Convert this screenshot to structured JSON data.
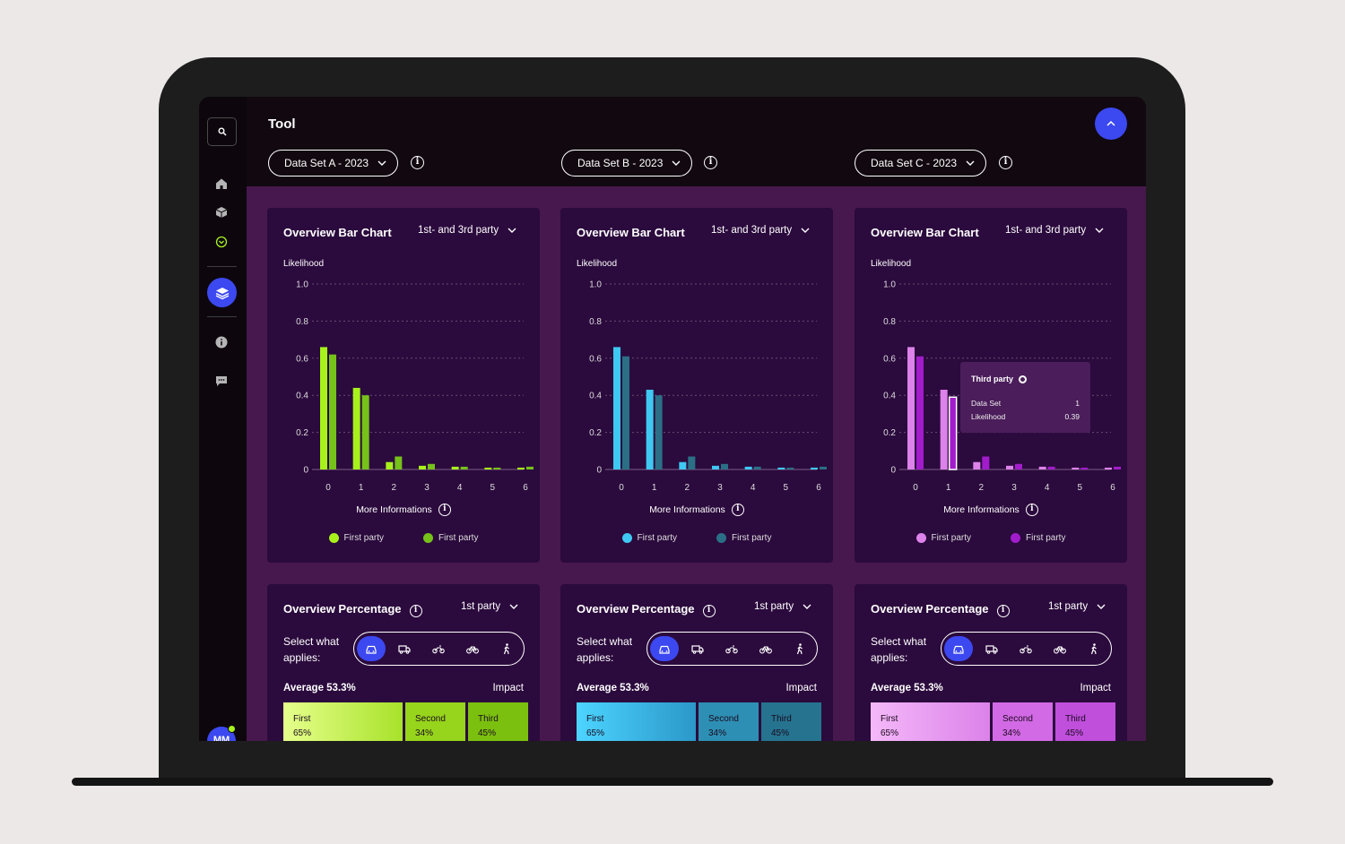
{
  "app": {
    "title": "Tool",
    "avatar_initials": "MM"
  },
  "sidebar": {
    "items": [
      "search-icon",
      "home-icon",
      "cube-icon",
      "check-circle-icon",
      "layers-icon",
      "info-icon",
      "chat-icon"
    ]
  },
  "datasets": [
    {
      "label": "Data Set A - 2023"
    },
    {
      "label": "Data Set B - 2023"
    },
    {
      "label": "Data Set C - 2023"
    }
  ],
  "colors": {
    "accent": "#3c48f0",
    "set_a": [
      "#a8f21b",
      "#76c11a"
    ],
    "set_b": [
      "#3fc8f2",
      "#2b6f86"
    ],
    "set_c": [
      "#dc82ea",
      "#a21ccc"
    ]
  },
  "bar_cards": [
    {
      "title": "Overview Bar Chart",
      "filter": "1st- and 3rd party",
      "ylabel": "Likelihood",
      "more": "More Informations",
      "legend": [
        "First party",
        "First party"
      ]
    },
    {
      "title": "Overview Bar Chart",
      "filter": "1st- and 3rd party",
      "ylabel": "Likelihood",
      "more": "More Informations",
      "legend": [
        "First party",
        "First party"
      ]
    },
    {
      "title": "Overview Bar Chart",
      "filter": "1st- and 3rd party",
      "ylabel": "Likelihood",
      "more": "More Informations",
      "legend": [
        "First party",
        "First party"
      ],
      "tooltip": {
        "title": "Third party",
        "row1_label": "Data Set",
        "row1_value": "1",
        "row2_label": "Likelihood",
        "row2_value": "0.39"
      }
    }
  ],
  "chart_data": [
    {
      "type": "bar",
      "categories": [
        "0",
        "1",
        "2",
        "3",
        "4",
        "5",
        "6"
      ],
      "series": [
        {
          "name": "First party",
          "values": [
            0.66,
            0.44,
            0.04,
            0.02,
            0.015,
            0.01,
            0.01
          ]
        },
        {
          "name": "First party",
          "values": [
            0.62,
            0.4,
            0.07,
            0.03,
            0.015,
            0.01,
            0.015
          ]
        }
      ],
      "ylabel": "Likelihood",
      "ylim": [
        0,
        1.0
      ],
      "yticks": [
        "0",
        "0.2",
        "0.4",
        "0.6",
        "0.8",
        "1.0"
      ],
      "grid": true
    },
    {
      "type": "bar",
      "categories": [
        "0",
        "1",
        "2",
        "3",
        "4",
        "5",
        "6"
      ],
      "series": [
        {
          "name": "First party",
          "values": [
            0.66,
            0.43,
            0.04,
            0.02,
            0.015,
            0.01,
            0.01
          ]
        },
        {
          "name": "First party",
          "values": [
            0.61,
            0.4,
            0.07,
            0.03,
            0.015,
            0.01,
            0.015
          ]
        }
      ],
      "ylabel": "Likelihood",
      "ylim": [
        0,
        1.0
      ],
      "yticks": [
        "0",
        "0.2",
        "0.4",
        "0.6",
        "0.8",
        "1.0"
      ],
      "grid": true
    },
    {
      "type": "bar",
      "categories": [
        "0",
        "1",
        "2",
        "3",
        "4",
        "5",
        "6"
      ],
      "series": [
        {
          "name": "First party",
          "values": [
            0.66,
            0.43,
            0.04,
            0.02,
            0.015,
            0.01,
            0.01
          ]
        },
        {
          "name": "First party",
          "values": [
            0.61,
            0.39,
            0.07,
            0.03,
            0.015,
            0.01,
            0.015
          ]
        }
      ],
      "ylabel": "Likelihood",
      "ylim": [
        0,
        1.0
      ],
      "yticks": [
        "0",
        "0.2",
        "0.4",
        "0.6",
        "0.8",
        "1.0"
      ],
      "grid": true,
      "highlight": {
        "series": 1,
        "category": "1"
      }
    }
  ],
  "pct_cards": [
    {
      "title": "Overview Percentage",
      "filter": "1st party",
      "select_label": "Select what applies:",
      "modes": [
        "car-icon",
        "truck-icon",
        "motorbike-icon",
        "bicycle-icon",
        "pedestrian-icon"
      ],
      "average": "Average 53.3%",
      "impact": "Impact",
      "tiles": [
        {
          "label": "First",
          "pct": "65%"
        },
        {
          "label": "Second",
          "pct": "34%"
        },
        {
          "label": "Third",
          "pct": "45%"
        }
      ]
    },
    {
      "title": "Overview Percentage",
      "filter": "1st party",
      "select_label": "Select what applies:",
      "modes": [
        "car-icon",
        "truck-icon",
        "motorbike-icon",
        "bicycle-icon",
        "pedestrian-icon"
      ],
      "average": "Average 53.3%",
      "impact": "Impact",
      "tiles": [
        {
          "label": "First",
          "pct": "65%"
        },
        {
          "label": "Second",
          "pct": "34%"
        },
        {
          "label": "Third",
          "pct": "45%"
        }
      ]
    },
    {
      "title": "Overview Percentage",
      "filter": "1st party",
      "select_label": "Select what applies:",
      "modes": [
        "car-icon",
        "truck-icon",
        "motorbike-icon",
        "bicycle-icon",
        "pedestrian-icon"
      ],
      "average": "Average 53.3%",
      "impact": "Impact",
      "tiles": [
        {
          "label": "First",
          "pct": "65%"
        },
        {
          "label": "Second",
          "pct": "34%"
        },
        {
          "label": "Third",
          "pct": "45%"
        }
      ]
    }
  ]
}
